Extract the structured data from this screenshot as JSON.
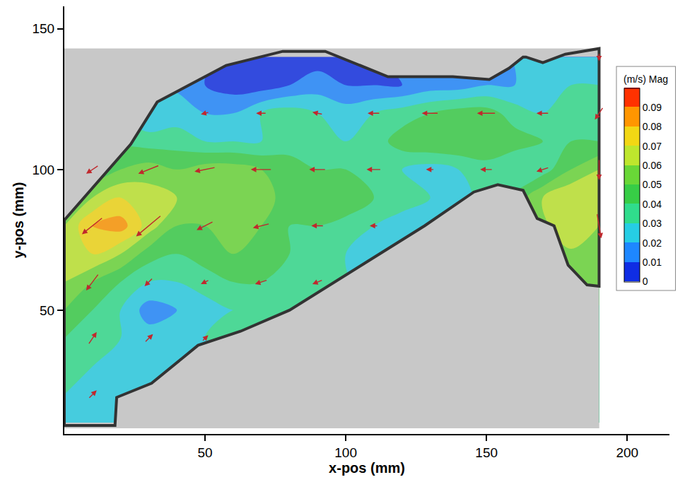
{
  "chart_data": {
    "type": "contour",
    "x_label": "x-pos (mm)",
    "y_label": "y-pos (mm)",
    "xlim": [
      0,
      215
    ],
    "ylim": [
      6,
      158
    ],
    "xticks": [
      50,
      100,
      150,
      200
    ],
    "yticks": [
      50,
      100,
      150
    ],
    "grid": false,
    "color_label": "(m/s) Mag",
    "color_range": [
      0,
      0.1
    ],
    "color_ticks": [
      0,
      0.01,
      0.02,
      0.03,
      0.04,
      0.05,
      0.06,
      0.07,
      0.08,
      0.09
    ],
    "image_extent": {
      "x": [
        0,
        190
      ],
      "y": [
        8,
        143
      ]
    },
    "grid_x": [
      0,
      10,
      20,
      30,
      40,
      50,
      60,
      70,
      80,
      90,
      100,
      110,
      120,
      130,
      140,
      150,
      160,
      170,
      180,
      190
    ],
    "grid_y": [
      10,
      20,
      30,
      40,
      50,
      60,
      70,
      80,
      90,
      100,
      110,
      120,
      130,
      140
    ],
    "magnitude": [
      [
        0.03,
        0.03,
        null,
        null,
        null,
        null,
        null,
        null,
        null,
        null,
        null,
        null,
        null,
        null,
        null,
        null,
        null,
        null,
        null,
        null
      ],
      [
        0.03,
        0.03,
        null,
        null,
        null,
        null,
        null,
        null,
        null,
        null,
        null,
        null,
        null,
        null,
        null,
        null,
        null,
        null,
        null,
        null
      ],
      [
        0.035,
        0.03,
        0.03,
        0.025,
        null,
        null,
        null,
        null,
        null,
        null,
        null,
        null,
        null,
        null,
        null,
        null,
        null,
        null,
        null,
        null
      ],
      [
        0.04,
        0.035,
        0.03,
        0.025,
        0.025,
        0.03,
        null,
        null,
        null,
        null,
        null,
        null,
        null,
        null,
        null,
        null,
        null,
        null,
        null,
        null
      ],
      [
        0.05,
        0.04,
        0.03,
        0.015,
        0.02,
        0.025,
        0.03,
        0.03,
        null,
        null,
        null,
        null,
        null,
        null,
        null,
        null,
        null,
        null,
        null,
        null
      ],
      [
        0.06,
        0.05,
        0.04,
        0.03,
        0.03,
        0.035,
        0.04,
        0.04,
        0.035,
        0.03,
        null,
        null,
        null,
        null,
        null,
        null,
        null,
        null,
        null,
        null
      ],
      [
        0.065,
        0.07,
        0.06,
        0.045,
        0.04,
        0.045,
        0.05,
        0.05,
        0.04,
        0.035,
        0.03,
        0.025,
        null,
        null,
        null,
        null,
        null,
        null,
        null,
        null
      ],
      [
        0.06,
        0.08,
        0.085,
        0.065,
        0.05,
        0.05,
        0.055,
        0.05,
        0.04,
        0.04,
        0.035,
        0.03,
        0.025,
        null,
        null,
        null,
        null,
        null,
        0.07,
        0.06
      ],
      [
        0.05,
        0.06,
        0.07,
        0.065,
        0.06,
        0.06,
        0.06,
        0.055,
        0.045,
        0.045,
        0.05,
        0.04,
        0.035,
        0.03,
        0.025,
        null,
        null,
        0.06,
        0.07,
        0.065
      ],
      [
        0.035,
        0.04,
        0.05,
        0.055,
        0.05,
        0.055,
        0.055,
        0.05,
        0.045,
        0.04,
        0.04,
        0.035,
        0.03,
        0.025,
        0.03,
        0.035,
        0.03,
        0.035,
        0.05,
        0.06
      ],
      [
        null,
        null,
        null,
        0.035,
        0.035,
        0.03,
        0.03,
        0.03,
        0.035,
        0.035,
        0.03,
        0.035,
        0.045,
        0.05,
        0.05,
        0.05,
        0.045,
        0.04,
        0.04,
        0.04
      ],
      [
        null,
        null,
        null,
        0.02,
        0.025,
        0.02,
        0.02,
        0.03,
        0.035,
        0.03,
        0.025,
        0.03,
        0.035,
        0.04,
        0.045,
        0.045,
        0.035,
        0.03,
        0.035,
        0.04
      ],
      [
        null,
        null,
        null,
        null,
        null,
        0.01,
        0.005,
        0.005,
        0.01,
        0.015,
        0.01,
        0.01,
        0.01,
        0.015,
        0.015,
        0.02,
        0.02,
        0.025,
        0.03,
        0.03
      ],
      [
        null,
        null,
        null,
        null,
        null,
        null,
        null,
        null,
        0.005,
        0.005,
        null,
        null,
        null,
        null,
        null,
        null,
        null,
        null,
        0.02,
        0.02
      ]
    ],
    "vectors": {
      "color": "#c0282d",
      "x": [
        10,
        10,
        30,
        50,
        10,
        30,
        50,
        70,
        90,
        10,
        30,
        50,
        70,
        90,
        110,
        190,
        10,
        30,
        50,
        70,
        90,
        110,
        130,
        150,
        170,
        190,
        50,
        70,
        90,
        110,
        130,
        150,
        170,
        190,
        90,
        190
      ],
      "y": [
        20,
        40,
        40,
        40,
        60,
        60,
        60,
        60,
        60,
        80,
        80,
        80,
        80,
        80,
        80,
        80,
        100,
        100,
        100,
        100,
        100,
        100,
        100,
        100,
        100,
        100,
        120,
        120,
        120,
        120,
        120,
        120,
        120,
        120,
        140,
        140
      ],
      "u": [
        0.02,
        0.02,
        0.02,
        0.015,
        -0.03,
        -0.02,
        -0.02,
        -0.03,
        -0.025,
        -0.05,
        -0.06,
        -0.04,
        -0.04,
        -0.03,
        -0.02,
        0.01,
        -0.03,
        -0.05,
        -0.05,
        -0.05,
        -0.04,
        -0.035,
        -0.02,
        -0.03,
        -0.03,
        0,
        -0.02,
        -0.025,
        -0.025,
        -0.03,
        -0.04,
        -0.045,
        -0.03,
        -0.02,
        0.005,
        0
      ],
      "v": [
        0.02,
        0.03,
        0.02,
        0.015,
        -0.04,
        -0.02,
        -0.01,
        -0.01,
        -0.01,
        -0.04,
        -0.05,
        -0.02,
        -0.01,
        0,
        0,
        -0.06,
        -0.02,
        -0.02,
        -0.01,
        0,
        0,
        0,
        0,
        0,
        -0.01,
        -0.05,
        -0.005,
        0,
        0.005,
        0,
        0,
        0,
        0,
        -0.03,
        0,
        -0.02
      ]
    },
    "boundary": {
      "x": [
        0,
        23.6,
        33,
        57.5,
        77.6,
        92.7,
        115,
        138,
        151,
        158,
        163,
        164,
        170,
        178,
        190,
        190,
        185.7,
        179,
        174,
        168,
        163,
        154,
        145.5,
        128,
        108,
        80,
        62.6,
        47.5,
        31,
        18.6,
        18,
        0
      ],
      "y": [
        82,
        109,
        124,
        137,
        142,
        142,
        133,
        133,
        132,
        136,
        140,
        140,
        138,
        141,
        143,
        58.5,
        59,
        66,
        80,
        82.6,
        92.6,
        94.6,
        92,
        80,
        67.5,
        50,
        42.5,
        37.5,
        24,
        19,
        9,
        9
      ]
    }
  }
}
